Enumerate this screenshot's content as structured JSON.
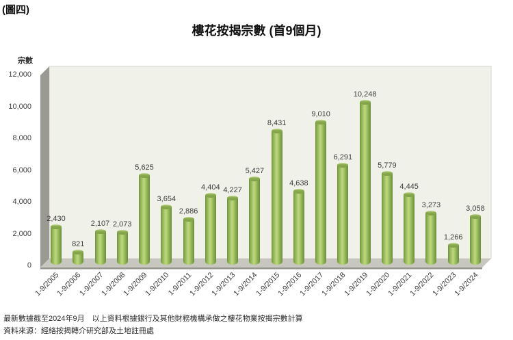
{
  "page": {
    "figure_label": "(圖四)",
    "title": "樓花按揭宗數 (首9個月)",
    "footnotes": {
      "line1": "最新數據截至2024年9月　以上資料根據銀行及其他財務機構承做之樓花物業按揭宗數計算",
      "line2": "資料來源：經絡按揭轉介研究部及土地註冊處"
    }
  },
  "chart_data": {
    "type": "bar",
    "style": "3d-cylinder",
    "title": "樓花按揭宗數 (首9個月)",
    "xlabel": "",
    "ylabel": "宗數",
    "ylim": [
      0,
      12000
    ],
    "grid": false,
    "legend": "none",
    "bar_color": "#94b956",
    "plot_bg": "#f0f1e9",
    "wall_color": "#9a9a92",
    "floor_color": "#c7c7bf",
    "categories": [
      "1-9/2005",
      "1-9/2006",
      "1-9/2007",
      "1-9/2008",
      "1-9/2009",
      "1-9/2010",
      "1-9/2011",
      "1-9/2012",
      "1-9/2013",
      "1-9/2014",
      "1-9/2015",
      "1-9/2016",
      "1-9/2017",
      "1-9/2018",
      "1-9/2019",
      "1-9/2020",
      "1-9/2021",
      "1-9/2022",
      "1-9/2023",
      "1-9/2024"
    ],
    "values": [
      2430,
      821,
      2107,
      2073,
      5625,
      3654,
      2886,
      4404,
      4227,
      5427,
      8431,
      4638,
      9010,
      6291,
      10248,
      5779,
      4445,
      3273,
      1266,
      3058
    ],
    "value_labels": [
      "2,430",
      "821",
      "2,107",
      "2,073",
      "5,625",
      "3,654",
      "2,886",
      "4,404",
      "4,227",
      "5,427",
      "8,431",
      "4,638",
      "9,010",
      "6,291",
      "10,248",
      "5,779",
      "4,445",
      "3,273",
      "1,266",
      "3,058"
    ],
    "y_ticks": [
      0,
      2000,
      4000,
      6000,
      8000,
      10000,
      12000
    ],
    "y_tick_labels": [
      "0",
      "2,000",
      "4,000",
      "6,000",
      "8,000",
      "10,000",
      "12,000"
    ]
  }
}
